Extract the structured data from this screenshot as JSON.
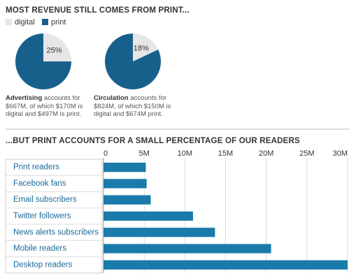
{
  "title": "MOST REVENUE STILL COMES FROM PRINT...",
  "legend": {
    "categories": [
      "digital",
      "print"
    ],
    "colors": [
      "#e6e6e6",
      "#17608c"
    ]
  },
  "chart_data": [
    {
      "type": "pie",
      "values": [
        25,
        75
      ],
      "value_labels": [
        "25%",
        null
      ],
      "caption_bold": "Advertising",
      "caption": "accounts for $667M, of which $170M is digital and $497M is print."
    },
    {
      "type": "pie",
      "values": [
        18,
        82
      ],
      "value_labels": [
        "18%",
        null
      ],
      "caption_bold": "Circulation",
      "caption": "accounts for $824M, of which $150M is digital and $674M print."
    },
    {
      "type": "hbar",
      "title": "...BUT PRINT ACCOUNTS FOR A SMALL PERCENTAGE OF OUR READERS",
      "categories": [
        "Print readers",
        "Facebook fans",
        "Email subscribers",
        "Twitter followers",
        "News alerts subscribers",
        "Mobile readers",
        "Desktop readers"
      ],
      "values": [
        5.2,
        5.3,
        5.8,
        11.0,
        13.7,
        20.6,
        30.0
      ],
      "color": "#1a7bab",
      "xlim": [
        0,
        30
      ],
      "xticks": [
        0,
        {
          "value": 5,
          "label": "5M"
        },
        {
          "value": 10,
          "label": "10M"
        },
        {
          "value": 15,
          "label": "15M"
        },
        {
          "value": 20,
          "label": "20M"
        },
        {
          "value": 25,
          "label": "25M"
        },
        {
          "value": 30,
          "label": "30M"
        }
      ],
      "grid": true
    }
  ]
}
